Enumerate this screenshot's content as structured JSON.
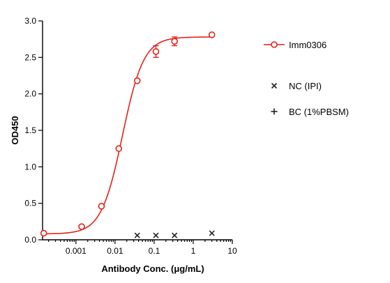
{
  "chart_data": {
    "type": "scatter",
    "xlabel": "Antibody Conc. (μg/mL)",
    "ylabel": "OD450",
    "xscale": "log",
    "xlim": [
      0.00014,
      10
    ],
    "ylim": [
      0,
      3.0
    ],
    "xticks": [
      0.001,
      0.01,
      0.1,
      1,
      10
    ],
    "xtick_labels": [
      "0.001",
      "0.01",
      "0.1",
      "1",
      "10"
    ],
    "yticks": [
      0,
      0.5,
      1.0,
      1.5,
      2.0,
      2.5,
      3.0
    ],
    "ytick_labels": [
      "0.0",
      "0.5",
      "1.0",
      "1.5",
      "2.0",
      "2.5",
      "3.0"
    ],
    "grid": false,
    "legend_position": "right",
    "series": [
      {
        "name": "Imm0306",
        "color": "#e32119",
        "marker": "open-circle",
        "fit": "sigmoidal 4PL",
        "fit_params": {
          "bottom": 0.08,
          "top": 2.78,
          "ec50": 0.0155,
          "hill": 1.6
        },
        "points": [
          {
            "x": 0.00015,
            "y": 0.09
          },
          {
            "x": 0.0014,
            "y": 0.18
          },
          {
            "x": 0.0045,
            "y": 0.46
          },
          {
            "x": 0.0125,
            "y": 1.25
          },
          {
            "x": 0.037,
            "y": 2.18
          },
          {
            "x": 0.111,
            "y": 2.58,
            "err": 0.08
          },
          {
            "x": 0.333,
            "y": 2.72,
            "err": 0.06
          },
          {
            "x": 3.0,
            "y": 2.81
          }
        ]
      },
      {
        "name": "NC (IPI)",
        "color": "#222222",
        "marker": "x",
        "points": [
          {
            "x": 0.037,
            "y": 0.06
          },
          {
            "x": 0.111,
            "y": 0.06
          },
          {
            "x": 0.333,
            "y": 0.06
          },
          {
            "x": 3.0,
            "y": 0.09
          }
        ]
      },
      {
        "name": "BC (1%PBSM)",
        "color": "#222222",
        "marker": "plus",
        "points": []
      }
    ]
  }
}
